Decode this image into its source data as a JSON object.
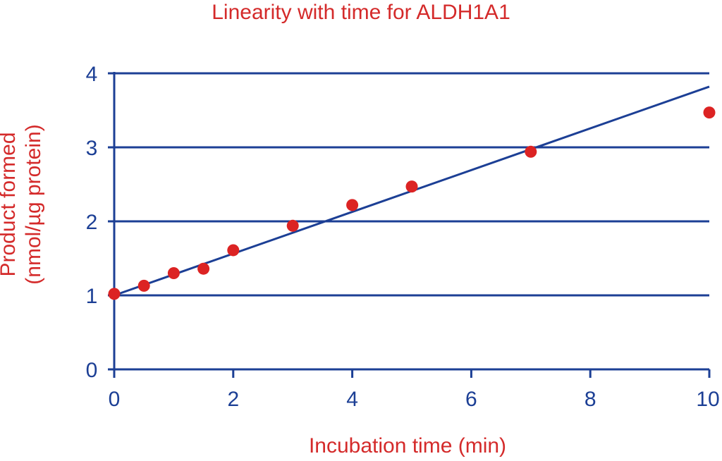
{
  "chart_data": {
    "type": "scatter",
    "title": "Linearity with time for ALDH1A1",
    "xlabel": "Incubation time (min)",
    "ylabel": [
      "Product formed",
      "(nmol/µg protein)"
    ],
    "xlim": [
      0,
      10
    ],
    "ylim": [
      0,
      4
    ],
    "x_ticks": [
      "0",
      "2",
      "4",
      "6",
      "8",
      "10"
    ],
    "y_ticks": [
      "0",
      "1",
      "2",
      "3",
      "4"
    ],
    "grid": "horizontal",
    "series": [
      {
        "points": [
          {
            "x": 0,
            "y": 1.02
          },
          {
            "x": 0.5,
            "y": 1.13
          },
          {
            "x": 1,
            "y": 1.3
          },
          {
            "x": 1.5,
            "y": 1.36
          },
          {
            "x": 2,
            "y": 1.61
          },
          {
            "x": 3,
            "y": 1.94
          },
          {
            "x": 4,
            "y": 2.22
          },
          {
            "x": 5,
            "y": 2.47
          },
          {
            "x": 7,
            "y": 2.94
          },
          {
            "x": 10,
            "y": 3.47
          }
        ]
      }
    ],
    "trendline": {
      "type": "linear",
      "x": [
        0,
        10
      ],
      "y": [
        1.0,
        3.82
      ]
    },
    "colors": {
      "axis": "#1c3f95",
      "points": "#dc2323",
      "text_accent": "#d42a2a"
    }
  }
}
